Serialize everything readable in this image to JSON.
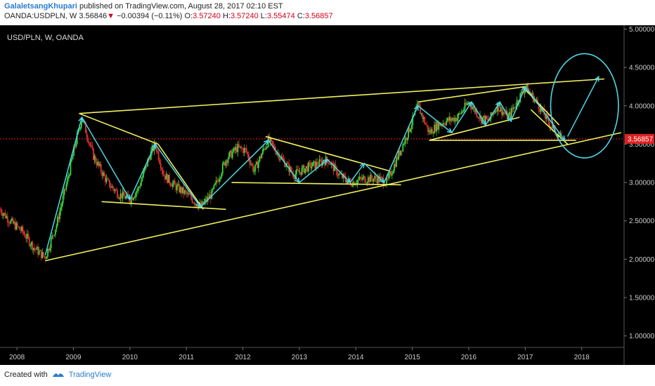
{
  "header": {
    "publisher": "GalaletsangKhupari",
    "published_text": "published on TradingView.com, August 28, 2017 02:10 EST",
    "symbol_line": "OANDA:USDPLN, W",
    "last": "3.56846",
    "change": "−0.00394 (−0.11%)",
    "o_label": "O:",
    "o": "3.57240",
    "h_label": "H:",
    "h": "3.57240",
    "l_label": "L:",
    "l": "3.55474",
    "c_label": "C:",
    "c": "3.56857"
  },
  "footer": {
    "created_with": "Created with",
    "brand": "TradingView"
  },
  "colors": {
    "background": "#000000",
    "up": "#3ad63a",
    "down": "#e03030",
    "trendline": "#f0f060",
    "arrow": "#4fd6e6",
    "price_line": "#e02020",
    "price_tag_bg": "#e02020"
  },
  "chart_data": {
    "type": "candlestick",
    "title": "USD/PLN, W, OANDA",
    "price_tag": "3.56857",
    "current_price": 3.56857,
    "x_ticks": [
      "2008",
      "2009",
      "2010",
      "2011",
      "2012",
      "2013",
      "2014",
      "2015",
      "2016",
      "2017",
      "2018"
    ],
    "y_ticks": [
      "5.00000",
      "4.50000",
      "4.00000",
      "3.50000",
      "3.00000",
      "2.50000",
      "2.00000",
      "1.50000",
      "1.00000"
    ],
    "ylim": [
      0.85,
      5.05
    ],
    "xlim": [
      2007.7,
      2018.75
    ],
    "series_path": [
      [
        2007.7,
        2.65
      ],
      [
        2007.9,
        2.48
      ],
      [
        2008.1,
        2.36
      ],
      [
        2008.3,
        2.15
      ],
      [
        2008.5,
        2.02
      ],
      [
        2008.7,
        2.45
      ],
      [
        2008.9,
        3.05
      ],
      [
        2009.05,
        3.55
      ],
      [
        2009.15,
        3.85
      ],
      [
        2009.35,
        3.35
      ],
      [
        2009.6,
        3.0
      ],
      [
        2009.8,
        2.85
      ],
      [
        2010.0,
        2.78
      ],
      [
        2010.15,
        2.92
      ],
      [
        2010.35,
        3.35
      ],
      [
        2010.45,
        3.5
      ],
      [
        2010.6,
        3.1
      ],
      [
        2010.8,
        2.95
      ],
      [
        2011.0,
        2.85
      ],
      [
        2011.15,
        2.75
      ],
      [
        2011.25,
        2.68
      ],
      [
        2011.45,
        2.85
      ],
      [
        2011.7,
        3.3
      ],
      [
        2011.9,
        3.45
      ],
      [
        2012.05,
        3.42
      ],
      [
        2012.2,
        3.15
      ],
      [
        2012.35,
        3.4
      ],
      [
        2012.45,
        3.55
      ],
      [
        2012.65,
        3.35
      ],
      [
        2012.9,
        3.1
      ],
      [
        2013.15,
        3.2
      ],
      [
        2013.35,
        3.25
      ],
      [
        2013.5,
        3.3
      ],
      [
        2013.7,
        3.1
      ],
      [
        2013.9,
        3.0
      ],
      [
        2014.15,
        3.05
      ],
      [
        2014.4,
        3.05
      ],
      [
        2014.55,
        3.0
      ],
      [
        2014.75,
        3.35
      ],
      [
        2014.95,
        3.7
      ],
      [
        2015.1,
        4.0
      ],
      [
        2015.3,
        3.65
      ],
      [
        2015.45,
        3.75
      ],
      [
        2015.6,
        3.8
      ],
      [
        2015.8,
        3.85
      ],
      [
        2016.0,
        4.05
      ],
      [
        2016.2,
        3.85
      ],
      [
        2016.35,
        3.8
      ],
      [
        2016.5,
        4.0
      ],
      [
        2016.7,
        3.85
      ],
      [
        2016.85,
        4.05
      ],
      [
        2017.0,
        4.25
      ],
      [
        2017.2,
        4.05
      ],
      [
        2017.4,
        3.8
      ],
      [
        2017.55,
        3.65
      ],
      [
        2017.65,
        3.57
      ]
    ],
    "trendlines": [
      [
        [
          2008.5,
          1.98
        ],
        [
          2018.7,
          3.65
        ]
      ],
      [
        [
          2009.1,
          3.9
        ],
        [
          2018.4,
          4.35
        ]
      ],
      [
        [
          2009.1,
          3.9
        ],
        [
          2010.5,
          3.5
        ]
      ],
      [
        [
          2009.5,
          2.75
        ],
        [
          2011.7,
          2.65
        ]
      ],
      [
        [
          2010.5,
          3.5
        ],
        [
          2011.3,
          2.65
        ]
      ],
      [
        [
          2011.8,
          3.0
        ],
        [
          2014.8,
          2.97
        ]
      ],
      [
        [
          2012.4,
          3.6
        ],
        [
          2014.6,
          3.15
        ]
      ],
      [
        [
          2015.1,
          4.05
        ],
        [
          2017.0,
          4.25
        ]
      ],
      [
        [
          2015.3,
          3.55
        ],
        [
          2016.9,
          3.85
        ]
      ],
      [
        [
          2015.3,
          3.55
        ],
        [
          2017.9,
          3.55
        ]
      ],
      [
        [
          2016.95,
          4.25
        ],
        [
          2017.6,
          3.75
        ]
      ],
      [
        [
          2017.1,
          3.95
        ],
        [
          2017.75,
          3.5
        ]
      ]
    ],
    "arrows": [
      [
        [
          2008.5,
          2.05
        ],
        [
          2009.15,
          3.85
        ]
      ],
      [
        [
          2009.15,
          3.85
        ],
        [
          2010.0,
          2.78
        ]
      ],
      [
        [
          2010.0,
          2.78
        ],
        [
          2010.45,
          3.5
        ]
      ],
      [
        [
          2010.45,
          3.5
        ],
        [
          2011.25,
          2.68
        ]
      ],
      [
        [
          2011.25,
          2.68
        ],
        [
          2012.45,
          3.55
        ]
      ],
      [
        [
          2012.45,
          3.55
        ],
        [
          2013.0,
          3.0
        ]
      ],
      [
        [
          2013.0,
          3.0
        ],
        [
          2013.5,
          3.3
        ]
      ],
      [
        [
          2013.5,
          3.3
        ],
        [
          2013.9,
          3.0
        ]
      ],
      [
        [
          2013.9,
          3.0
        ],
        [
          2014.15,
          3.25
        ]
      ],
      [
        [
          2014.15,
          3.25
        ],
        [
          2014.5,
          3.0
        ]
      ],
      [
        [
          2014.5,
          3.0
        ],
        [
          2015.1,
          4.0
        ]
      ],
      [
        [
          2015.1,
          4.0
        ],
        [
          2015.7,
          3.65
        ]
      ],
      [
        [
          2015.7,
          3.65
        ],
        [
          2016.05,
          4.05
        ]
      ],
      [
        [
          2016.05,
          4.05
        ],
        [
          2016.3,
          3.75
        ]
      ],
      [
        [
          2016.3,
          3.75
        ],
        [
          2016.55,
          4.05
        ]
      ],
      [
        [
          2016.55,
          4.05
        ],
        [
          2016.75,
          3.8
        ]
      ],
      [
        [
          2016.75,
          3.8
        ],
        [
          2017.0,
          4.25
        ]
      ],
      [
        [
          2017.0,
          4.25
        ],
        [
          2017.7,
          3.55
        ]
      ],
      [
        [
          2017.75,
          3.6
        ],
        [
          2018.3,
          4.38
        ]
      ]
    ],
    "circle": {
      "cx": 2018.05,
      "cy": 4.0,
      "rx": 0.6,
      "ry": 0.68
    },
    "grid": false,
    "legend": "none"
  }
}
